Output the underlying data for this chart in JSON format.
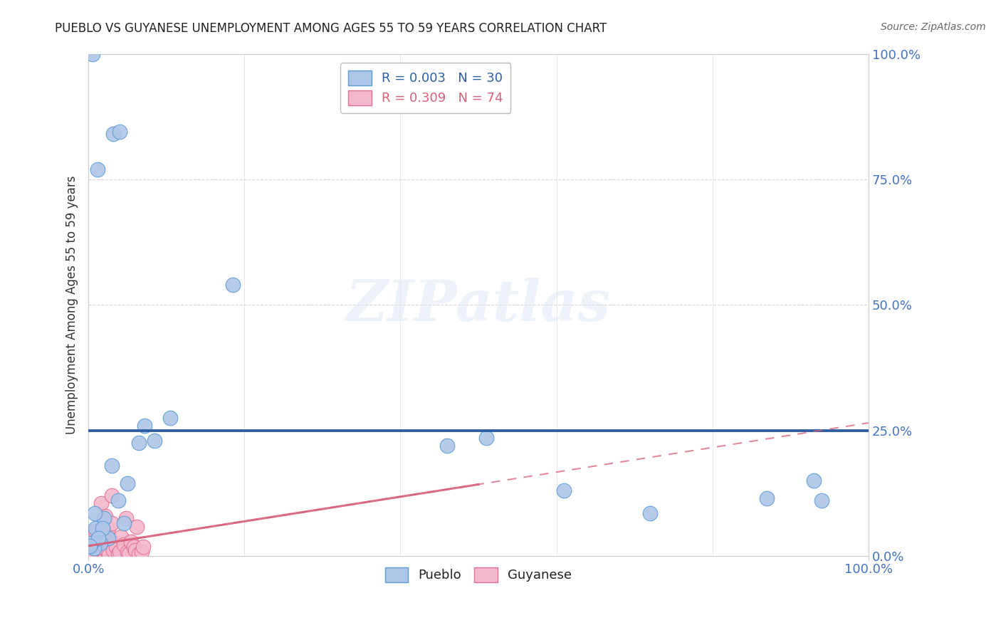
{
  "title": "PUEBLO VS GUYANESE UNEMPLOYMENT AMONG AGES 55 TO 59 YEARS CORRELATION CHART",
  "source": "Source: ZipAtlas.com",
  "ylabel": "Unemployment Among Ages 55 to 59 years",
  "watermark": "ZIPatlas",
  "pueblo_color": "#aec6e8",
  "pueblo_edge": "#5b9bd5",
  "guyanese_color": "#f4b8cc",
  "guyanese_edge": "#e07090",
  "regression_pueblo_color": "#2e5fa3",
  "regression_guyanese_color": "#d9607a",
  "pueblo_x": [
    0.5,
    3.2,
    4.0,
    7.2,
    8.5,
    1.2,
    10.5,
    18.5,
    6.5,
    2.0,
    5.0,
    2.5,
    3.8,
    1.5,
    0.9,
    87.0,
    72.0,
    61.0,
    46.0,
    93.0,
    94.0,
    51.0,
    0.7,
    0.3,
    1.8,
    3.0,
    1.3,
    0.8,
    0.2,
    4.5
  ],
  "pueblo_y": [
    100.0,
    84.0,
    84.5,
    26.0,
    23.0,
    77.0,
    27.5,
    54.0,
    22.5,
    7.5,
    14.5,
    3.5,
    11.0,
    2.5,
    5.5,
    11.5,
    8.5,
    13.0,
    22.0,
    15.0,
    11.0,
    23.5,
    1.5,
    2.5,
    5.5,
    18.0,
    3.5,
    8.5,
    2.0,
    6.5
  ],
  "guyanese_x": [
    0.05,
    0.08,
    0.1,
    0.12,
    0.15,
    0.18,
    0.2,
    0.22,
    0.25,
    0.28,
    0.3,
    0.33,
    0.35,
    0.38,
    0.4,
    0.43,
    0.45,
    0.48,
    0.5,
    0.55,
    0.6,
    0.65,
    0.7,
    0.75,
    0.8,
    0.85,
    0.9,
    0.95,
    1.0,
    1.1,
    1.2,
    1.3,
    1.4,
    1.5,
    1.6,
    1.7,
    1.8,
    1.9,
    2.0,
    2.2,
    2.4,
    2.6,
    2.8,
    3.0,
    3.2,
    3.5,
    3.8,
    4.0,
    4.2,
    4.5,
    4.8,
    5.0,
    5.2,
    5.5,
    5.8,
    6.0,
    6.2,
    6.5,
    6.8,
    7.0,
    0.15,
    0.25,
    0.35,
    0.45,
    0.55,
    0.65,
    0.75,
    0.85,
    1.0,
    1.2,
    1.5,
    2.0,
    2.5,
    3.0
  ],
  "guyanese_y": [
    0.3,
    0.8,
    0.5,
    1.2,
    1.8,
    0.4,
    0.9,
    1.5,
    2.2,
    0.6,
    1.0,
    3.0,
    0.4,
    2.0,
    3.2,
    0.8,
    0.5,
    1.5,
    1.8,
    4.0,
    2.5,
    0.8,
    0.4,
    3.5,
    1.8,
    1.2,
    0.4,
    2.5,
    2.2,
    0.9,
    4.0,
    0.4,
    2.8,
    1.8,
    10.5,
    1.2,
    0.4,
    1.8,
    2.8,
    8.0,
    0.9,
    0.4,
    3.2,
    12.0,
    1.2,
    1.8,
    0.4,
    0.9,
    3.8,
    2.2,
    7.5,
    0.9,
    0.4,
    2.8,
    1.8,
    1.2,
    5.8,
    0.4,
    0.9,
    1.8,
    0.3,
    0.6,
    0.8,
    1.0,
    2.0,
    3.0,
    4.0,
    5.0,
    1.5,
    2.5,
    3.5,
    4.5,
    5.5,
    6.5
  ],
  "xlim": [
    0,
    100
  ],
  "ylim": [
    0,
    100
  ],
  "yticks": [
    0,
    25,
    50,
    75,
    100
  ],
  "ytick_labels": [
    "0.0%",
    "25.0%",
    "50.0%",
    "75.0%",
    "100.0%"
  ],
  "xtick_labels": [
    "0.0%",
    "100.0%"
  ],
  "pueblo_reg_y": 25.0,
  "guyanese_reg_x0": 0,
  "guyanese_reg_y0": 2.0,
  "guyanese_reg_x1": 100,
  "guyanese_reg_y1": 26.5,
  "guyanese_solid_x1": 50,
  "guyanese_solid_y1": 14.25,
  "background_color": "#ffffff",
  "grid_color": "#cccccc",
  "tick_color": "#4472C4",
  "title_fontsize": 12,
  "source_fontsize": 10,
  "label_fontsize": 12,
  "tick_fontsize": 13,
  "legend_fontsize": 13
}
